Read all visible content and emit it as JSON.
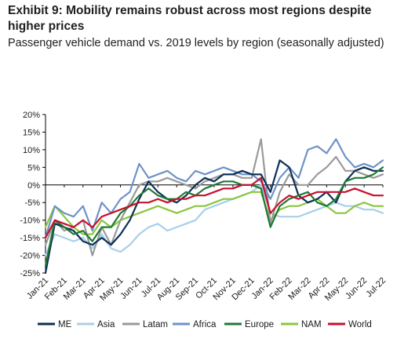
{
  "header": {
    "title": "Exhibit 9: Mobility remains robust across most regions despite higher prices",
    "subtitle": "Passenger vehicle demand vs. 2019 levels by region (seasonally adjusted)"
  },
  "chart_data": {
    "type": "line",
    "title": "Exhibit 9: Mobility remains robust across most regions despite higher prices",
    "subtitle": "Passenger vehicle demand vs. 2019 levels by region (seasonally adjusted)",
    "xlabel": "",
    "ylabel": "",
    "y_unit": "%",
    "ylim": [
      -25,
      20
    ],
    "yticks": [
      -25,
      -20,
      -15,
      -10,
      -5,
      0,
      5,
      10,
      15,
      20
    ],
    "ytick_labels": [
      "-25%",
      "-20%",
      "-15%",
      "-10%",
      "-5%",
      "0%",
      "5%",
      "10%",
      "15%",
      "20%"
    ],
    "x_tick_labels": [
      "Jan-21",
      "Feb-21",
      "Mar-21",
      "Apr-21",
      "May-21",
      "Jun-21",
      "Jul-21",
      "Aug-21",
      "Sep-21",
      "Oct-21",
      "Nov-21",
      "Dec-21",
      "Jan-22",
      "Feb-22",
      "Mar-22",
      "Apr-22",
      "May-22",
      "Jun-22",
      "Jul-22"
    ],
    "grid": false,
    "legend_position": "bottom",
    "x": [
      0,
      0.5,
      1,
      1.5,
      2,
      2.5,
      3,
      3.5,
      4,
      4.5,
      5,
      5.5,
      6,
      6.5,
      7,
      7.5,
      8,
      8.5,
      9,
      9.5,
      10,
      10.5,
      11,
      11.5,
      12,
      12.5,
      13,
      13.5,
      14,
      14.5,
      15,
      15.5,
      16,
      16.5,
      17,
      17.5,
      18
    ],
    "series": [
      {
        "name": "ME",
        "color": "#0b2f55",
        "values": [
          -25,
          -11,
          -12,
          -13,
          -16,
          -17,
          -15,
          -17,
          -14,
          -10,
          -4,
          1,
          -2,
          -4,
          -5,
          -3,
          0,
          2,
          1,
          3,
          3,
          4,
          3,
          3,
          -2,
          7,
          5,
          -3,
          -5,
          -4,
          -2,
          -5,
          1,
          4,
          5,
          4,
          4
        ]
      },
      {
        "name": "Asia",
        "color": "#a8cfea",
        "values": [
          -20,
          -14,
          -15,
          -16,
          -15,
          -18,
          -14,
          -18,
          -19,
          -17,
          -14,
          -12,
          -11,
          -13,
          -12,
          -11,
          -10,
          -7,
          -6,
          -5,
          -4,
          -3,
          -2,
          0,
          -8,
          -9,
          -9,
          -9,
          -8,
          -7,
          -6,
          -5,
          -6,
          -6,
          -7,
          -7,
          -8
        ]
      },
      {
        "name": "Latam",
        "color": "#9a9a9a",
        "values": [
          -17,
          -10,
          -13,
          -12,
          -10,
          -20,
          -12,
          -17,
          -10,
          -5,
          0,
          1,
          1,
          2,
          1,
          0,
          -1,
          1,
          2,
          3,
          3,
          2,
          2,
          13,
          -11,
          -2,
          3,
          0,
          0,
          3,
          5,
          8,
          4,
          4,
          3,
          2,
          3
        ]
      },
      {
        "name": "Africa",
        "color": "#6e92c8",
        "values": [
          -15,
          -6,
          -8,
          -9,
          -6,
          -13,
          -5,
          -8,
          -4,
          -2,
          6,
          2,
          3,
          4,
          2,
          1,
          4,
          3,
          4,
          5,
          4,
          3,
          3,
          1,
          -4,
          2,
          5,
          2,
          10,
          11,
          9,
          13,
          8,
          5,
          6,
          5,
          7
        ]
      },
      {
        "name": "Europe",
        "color": "#1e7a34",
        "values": [
          -23,
          -10,
          -12,
          -14,
          -13,
          -16,
          -12,
          -12,
          -8,
          -6,
          -3,
          -1,
          -3,
          -4,
          -4,
          -2,
          -3,
          -1,
          0,
          1,
          1,
          0,
          0,
          -1,
          -12,
          -6,
          -4,
          -3,
          -2,
          -5,
          -6,
          -4,
          1,
          2,
          2,
          3,
          5
        ]
      },
      {
        "name": "NAM",
        "color": "#8cc63f",
        "values": [
          -12,
          -6,
          -9,
          -12,
          -14,
          -14,
          -10,
          -12,
          -10,
          -9,
          -8,
          -7,
          -6,
          -7,
          -8,
          -7,
          -6,
          -6,
          -5,
          -4,
          -4,
          -3,
          -2,
          -2,
          -10,
          -7,
          -6,
          -6,
          -5,
          -4,
          -6,
          -8,
          -8,
          -6,
          -5,
          -6,
          -6
        ]
      },
      {
        "name": "World",
        "color": "#c8102e",
        "values": [
          -15,
          -10,
          -11,
          -12,
          -10,
          -12,
          -9,
          -8,
          -7,
          -6,
          -5,
          -5,
          -4,
          -5,
          -4,
          -4,
          -3,
          -3,
          -2,
          -1,
          -1,
          0,
          0,
          2,
          -8,
          -5,
          -3,
          -4,
          -3,
          -2,
          -2,
          -2,
          -2,
          -1,
          -2,
          -3,
          -3
        ]
      }
    ]
  }
}
